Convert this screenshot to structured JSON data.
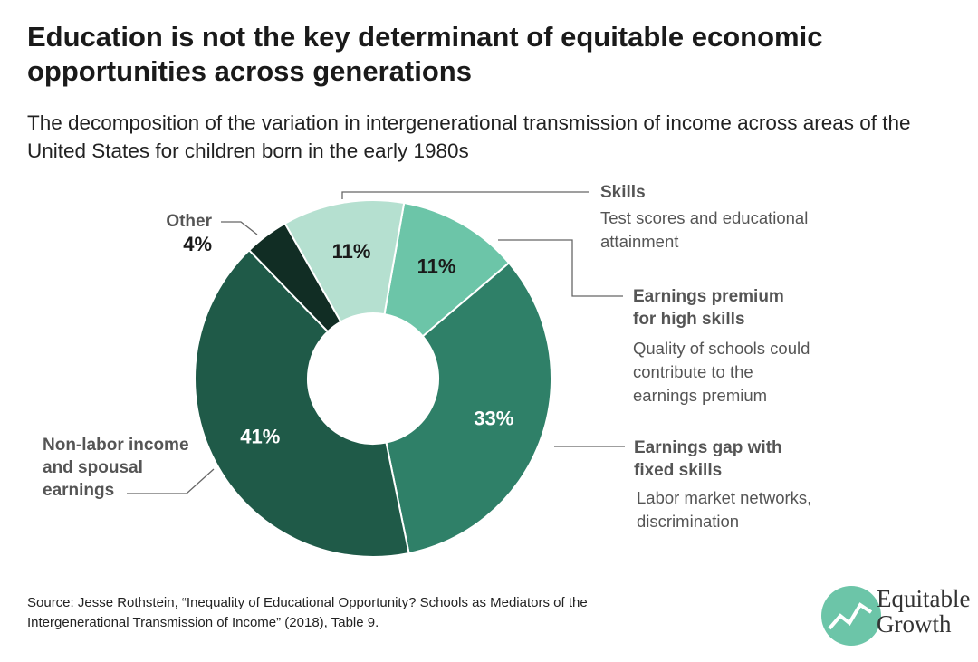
{
  "chart_data": {
    "type": "pie",
    "donut": true,
    "title": "Education is not the key determinant of equitable economic opportunities across generations",
    "subtitle": "The decomposition of the variation in intergenerational transmission of income across areas of the United States for children born in the early 1980s",
    "categories": [
      "Earnings premium for high skills",
      "Earnings gap with fixed skills",
      "Non-labor income and spousal earnings",
      "Other",
      "Skills"
    ],
    "descriptions": [
      "Quality of schools could contribute to the earnings premium",
      "Labor market networks, discrimination",
      null,
      null,
      "Test scores and educational attainment"
    ],
    "values": [
      11,
      33,
      41,
      4,
      11
    ],
    "value_labels": [
      "11%",
      "33%",
      "41%",
      "4%",
      "11%"
    ],
    "colors": [
      "#6cc5a8",
      "#2f8068",
      "#1f5a48",
      "#112d24",
      "#b5e0d0"
    ],
    "source": "Source: Jesse Rothstein, “Inequality of Educational Opportunity? Schools as Mediators of the Intergenerational Transmission of Income” (2018), Table 9.",
    "logo": [
      "Equitable",
      "Growth"
    ]
  }
}
